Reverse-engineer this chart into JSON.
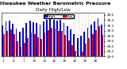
{
  "title": "Milwaukee Weather Barometric Pressure",
  "subtitle": "Daily High/Low",
  "bar_width": 0.42,
  "legend_high_label": "High",
  "legend_low_label": "Low",
  "high_color": "#0000dd",
  "low_color": "#dd0000",
  "background_color": "#ffffff",
  "ylim": [
    29.0,
    30.7
  ],
  "yticks": [
    29.0,
    29.2,
    29.4,
    29.6,
    29.8,
    30.0,
    30.2,
    30.4,
    30.6
  ],
  "ytick_labels": [
    "29.0",
    "29.2",
    "29.4",
    "29.6",
    "29.8",
    "30.0",
    "30.2",
    "30.4",
    "30.6"
  ],
  "dates": [
    "1",
    "2",
    "3",
    "4",
    "5",
    "6",
    "7",
    "8",
    "9",
    "10",
    "11",
    "12",
    "13",
    "14",
    "15",
    "16",
    "17",
    "18",
    "19",
    "20",
    "21",
    "22",
    "23",
    "24",
    "25",
    "26",
    "27",
    "28",
    "29",
    "30"
  ],
  "highs": [
    30.2,
    30.35,
    30.38,
    30.25,
    30.08,
    29.95,
    30.1,
    30.3,
    30.38,
    30.32,
    30.28,
    30.22,
    30.35,
    30.42,
    30.45,
    30.42,
    30.38,
    30.4,
    30.3,
    30.18,
    30.05,
    29.88,
    29.72,
    29.8,
    29.95,
    30.1,
    30.22,
    30.35,
    30.48,
    30.22
  ],
  "lows": [
    29.85,
    30.0,
    30.05,
    29.88,
    29.6,
    29.38,
    29.52,
    29.72,
    29.92,
    29.88,
    29.75,
    29.68,
    29.92,
    30.02,
    30.1,
    30.08,
    29.98,
    30.0,
    29.82,
    29.62,
    29.45,
    29.22,
    29.05,
    29.2,
    29.5,
    29.72,
    29.88,
    30.02,
    30.18,
    29.82
  ],
  "title_fontsize": 4.5,
  "tick_fontsize": 3.0,
  "legend_fontsize": 3.2,
  "dotted_indices": [
    21,
    22,
    23,
    24,
    25
  ],
  "dotted_color": "#aaaaaa",
  "yaxis_side": "right"
}
